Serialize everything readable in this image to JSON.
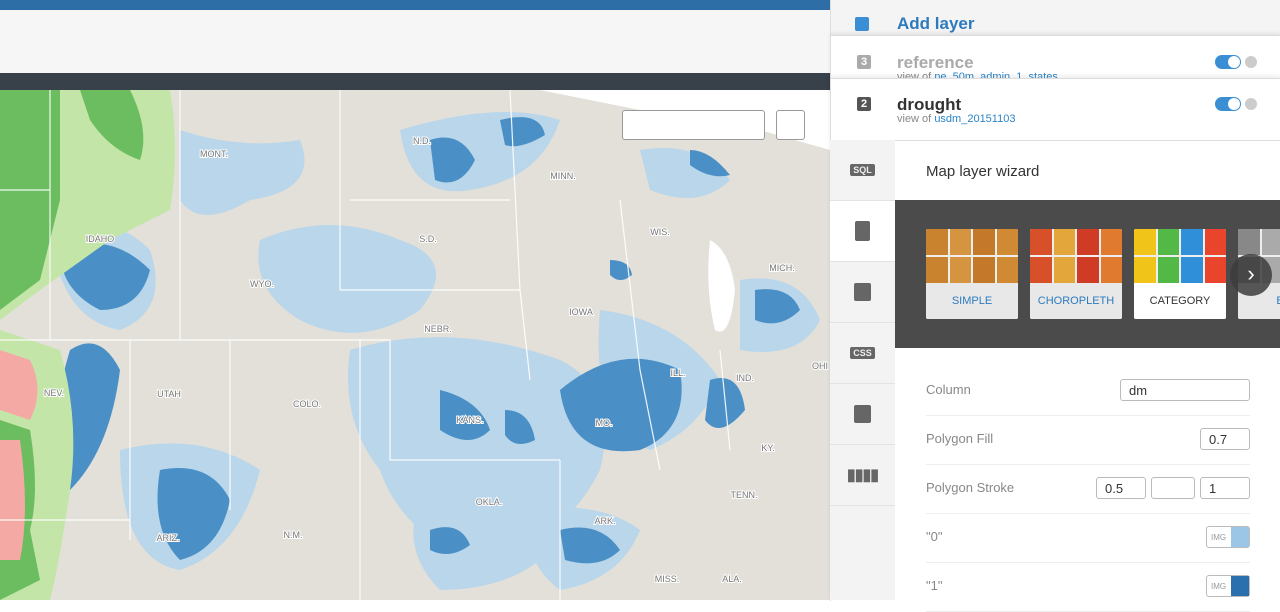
{
  "map": {
    "labels": [
      "MONT.",
      "N.D.",
      "MINN.",
      "IDAHO",
      "S.D.",
      "WIS.",
      "WYO.",
      "MICH.",
      "NEBR.",
      "IOWA",
      "NEV.",
      "UTAH",
      "COLO.",
      "KANS.",
      "MO.",
      "ILL.",
      "IND.",
      "OHI",
      "KY.",
      "TENN.",
      "ARIZ.",
      "N.M.",
      "OKLA.",
      "ARK.",
      "MISS.",
      "ALA."
    ]
  },
  "panel": {
    "add_layer": "Add layer",
    "layers": [
      {
        "number": "3",
        "name": "reference",
        "view_of": "view of",
        "table": "ne_50m_admin_1_states"
      },
      {
        "number": "2",
        "name": "drought",
        "view_of": "view of",
        "table": "usdm_20151103"
      }
    ],
    "sidebar": [
      "SQL",
      "CSS"
    ],
    "wizard": {
      "title": "Map layer wizard",
      "cards": [
        "SIMPLE",
        "CHOROPLETH",
        "CATEGORY",
        "BU"
      ],
      "fields": [
        {
          "label": "Column",
          "value": "dm"
        },
        {
          "label": "Polygon Fill",
          "value": "0.7"
        },
        {
          "label": "Polygon Stroke",
          "value": "0.5",
          "value2": "1"
        },
        {
          "label": "\"0\"",
          "value": "IMG"
        },
        {
          "label": "\"1\"",
          "value": "IMG"
        }
      ]
    }
  }
}
